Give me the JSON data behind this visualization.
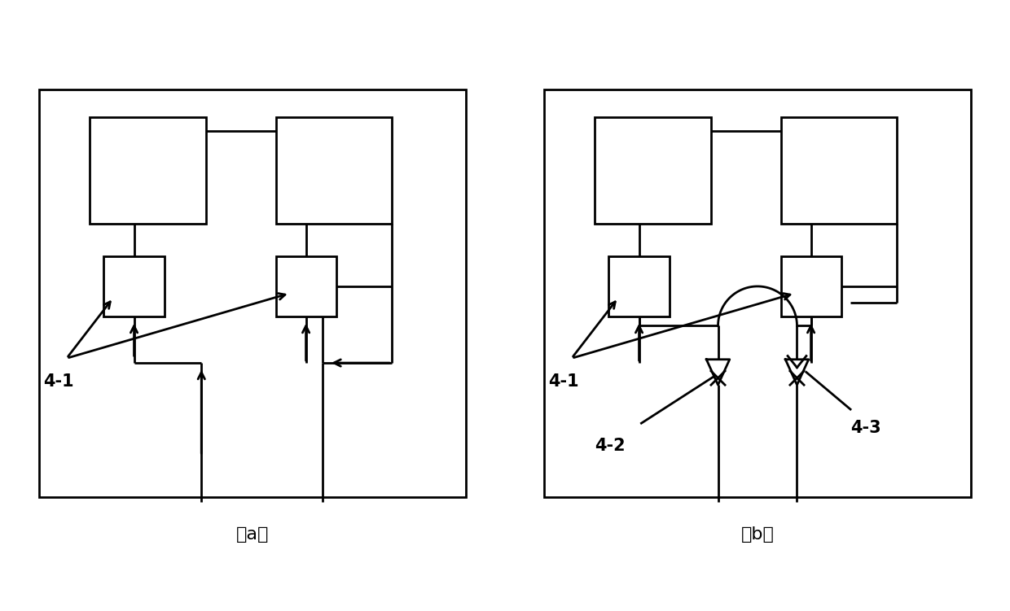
{
  "fig_width": 12.4,
  "fig_height": 7.51,
  "bg_color": "#ffffff",
  "line_color": "#000000",
  "lw": 2.0,
  "lw_thick": 2.5,
  "label_a": "（a）",
  "label_b": "（b）",
  "label_41": "4-1",
  "label_42": "4-2",
  "label_43": "4-3",
  "fontsize_label": 15,
  "fontsize_sub": 16
}
